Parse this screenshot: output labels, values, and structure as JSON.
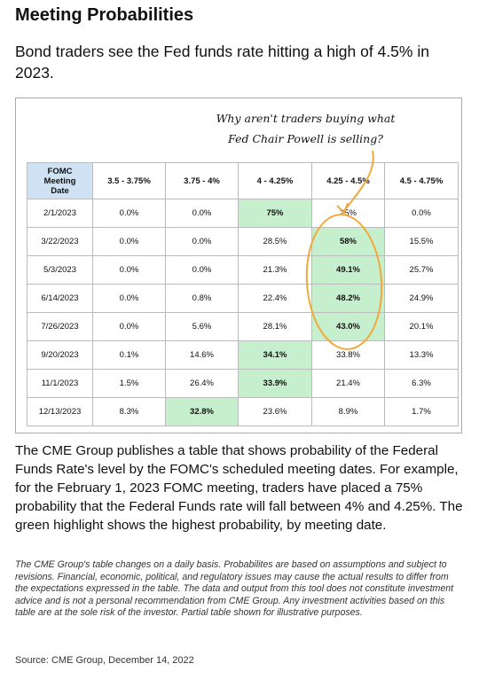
{
  "header": {
    "title": "Meeting Probabilities",
    "subtitle": "Bond traders see the Fed funds rate hitting a high of 4.5% in 2023."
  },
  "annotation": "Why aren't traders buying what Fed Chair Powell is selling?",
  "table": {
    "header": [
      "FOMC Meeting Date",
      "3.5 - 3.75%",
      "3.75 - 4%",
      "4 - 4.25%",
      "4.25 - 4.5%",
      "4.5 - 4.75%"
    ],
    "header_color": "#cfe2f3",
    "highlight_color": "#c6efce",
    "rows": [
      {
        "date": "2/1/2023",
        "cells": [
          "0.0%",
          "0.0%",
          "75%",
          "25%",
          "0.0%"
        ],
        "highlight": 2
      },
      {
        "date": "3/22/2023",
        "cells": [
          "0.0%",
          "0.0%",
          "28.5%",
          "58%",
          "15.5%"
        ],
        "highlight": 3
      },
      {
        "date": "5/3/2023",
        "cells": [
          "0.0%",
          "0.0%",
          "21.3%",
          "49.1%",
          "25.7%"
        ],
        "highlight": 3
      },
      {
        "date": "6/14/2023",
        "cells": [
          "0.0%",
          "0.8%",
          "22.4%",
          "48.2%",
          "24.9%"
        ],
        "highlight": 3
      },
      {
        "date": "7/26/2023",
        "cells": [
          "0.0%",
          "5.6%",
          "28.1%",
          "43.0%",
          "20.1%"
        ],
        "highlight": 3
      },
      {
        "date": "9/20/2023",
        "cells": [
          "0.1%",
          "14.6%",
          "34.1%",
          "33.8%",
          "13.3%"
        ],
        "highlight": 2
      },
      {
        "date": "11/1/2023",
        "cells": [
          "1.5%",
          "26.4%",
          "33.9%",
          "21.4%",
          "6.3%"
        ],
        "highlight": 2
      },
      {
        "date": "12/13/2023",
        "cells": [
          "8.3%",
          "32.8%",
          "23.6%",
          "8.9%",
          "1.7%"
        ],
        "highlight": 1
      }
    ]
  },
  "body": "The CME Group publishes a table that shows probability of the Federal Funds Rate's level by the FOMC's scheduled meeting dates. For example, for the February 1, 2023 FOMC meeting, traders have placed a 75% probability that the Federal Funds rate will fall between 4% and 4.25%. The green highlight shows the highest probability, by meeting date.",
  "disclaimer": "The CME Group's table changes on a daily basis. Probabilites are based on assumptions and subject to revisions. Financial, economic, political, and regulatory issues may cause the actual results to differ from the expectations expressed in the table. The data and output from this tool does not constitute investment advice and is not a personal recommendation from CME Group.  Any investment activities based on this table are at the sole risk of the investor. Partial table shown for illustrative purposes.",
  "source": "Source: CME Group, December 14, 2022"
}
